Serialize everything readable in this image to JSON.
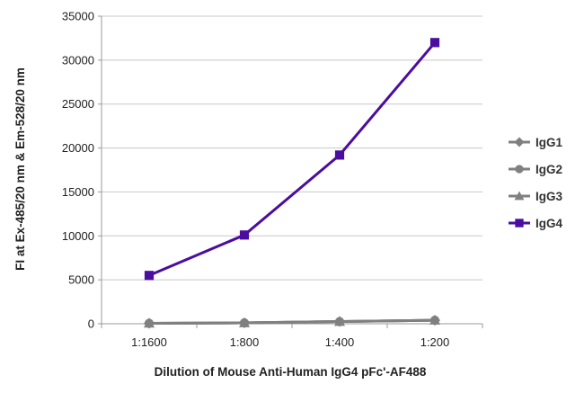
{
  "chart_data": {
    "type": "line",
    "categories": [
      "1:1600",
      "1:800",
      "1:400",
      "1:200"
    ],
    "series": [
      {
        "name": "IgG1",
        "values": [
          50,
          100,
          250,
          400
        ],
        "color": "#808080",
        "marker": "diamond"
      },
      {
        "name": "IgG2",
        "values": [
          50,
          100,
          250,
          400
        ],
        "color": "#808080",
        "marker": "circle"
      },
      {
        "name": "IgG3",
        "values": [
          50,
          100,
          250,
          400
        ],
        "color": "#808080",
        "marker": "triangle"
      },
      {
        "name": "IgG4",
        "values": [
          5500,
          10100,
          19200,
          32000
        ],
        "color": "#4B0D9F",
        "marker": "square"
      }
    ],
    "xlabel": "Dilution of Mouse Anti-Human IgG4 pFc'-AF488",
    "ylabel": "FI at Ex-485/20 nm & Em-528/20 nm",
    "ylim": [
      0,
      35000
    ],
    "yticks": [
      0,
      5000,
      10000,
      15000,
      20000,
      25000,
      30000,
      35000
    ],
    "grid": "horizontal",
    "legend": "right"
  }
}
